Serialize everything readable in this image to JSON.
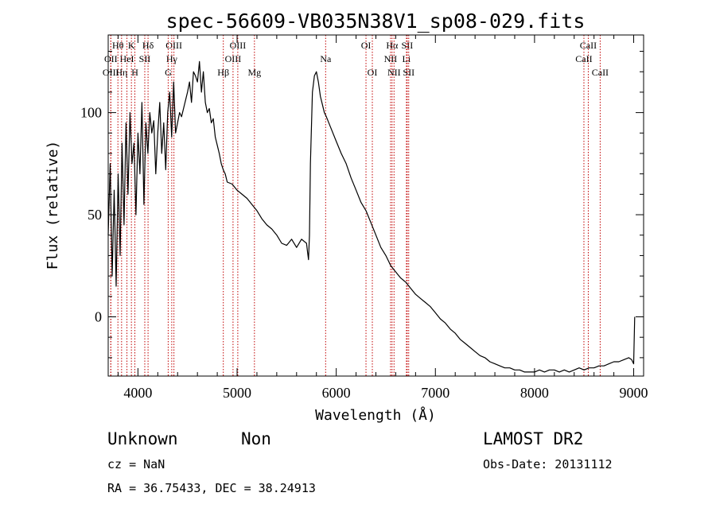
{
  "chart_data": {
    "type": "line",
    "title": "spec-56609-VB035N38V1_sp08-029.fits",
    "xlabel": "Wavelength (Å)",
    "ylabel": "Flux (relative)",
    "xlim": [
      3700,
      9100
    ],
    "ylim": [
      -29,
      138
    ],
    "xticks": [
      "4000",
      "5000",
      "6000",
      "7000",
      "8000",
      "9000"
    ],
    "yticks": [
      "0",
      "50",
      "100"
    ],
    "grid": false,
    "series": [
      {
        "color": "#000000",
        "x": [
          3700,
          3720,
          3740,
          3760,
          3780,
          3800,
          3820,
          3840,
          3860,
          3880,
          3900,
          3920,
          3940,
          3960,
          3980,
          4000,
          4020,
          4040,
          4060,
          4080,
          4100,
          4120,
          4140,
          4160,
          4180,
          4200,
          4220,
          4240,
          4260,
          4280,
          4300,
          4320,
          4340,
          4360,
          4380,
          4400,
          4420,
          4440,
          4460,
          4480,
          4500,
          4520,
          4540,
          4560,
          4580,
          4600,
          4620,
          4640,
          4660,
          4680,
          4700,
          4720,
          4740,
          4760,
          4780,
          4800,
          4820,
          4840,
          4860,
          4880,
          4900,
          4950,
          5000,
          5050,
          5100,
          5150,
          5200,
          5250,
          5300,
          5350,
          5400,
          5450,
          5500,
          5550,
          5600,
          5650,
          5700,
          5710,
          5720,
          5730,
          5740,
          5760,
          5780,
          5800,
          5820,
          5840,
          5860,
          5880,
          5900,
          5950,
          6000,
          6050,
          6100,
          6150,
          6200,
          6250,
          6300,
          6350,
          6400,
          6450,
          6500,
          6550,
          6600,
          6650,
          6700,
          6750,
          6800,
          6850,
          6900,
          6950,
          7000,
          7050,
          7100,
          7150,
          7200,
          7250,
          7300,
          7350,
          7400,
          7450,
          7500,
          7550,
          7600,
          7650,
          7700,
          7750,
          7800,
          7850,
          7900,
          7950,
          8000,
          8050,
          8100,
          8150,
          8200,
          8250,
          8300,
          8350,
          8400,
          8450,
          8500,
          8550,
          8600,
          8650,
          8700,
          8750,
          8800,
          8850,
          8900,
          8950,
          8980,
          9000,
          9010
        ],
        "y": [
          40,
          75,
          20,
          62,
          15,
          70,
          30,
          85,
          45,
          95,
          60,
          100,
          75,
          85,
          50,
          90,
          70,
          105,
          55,
          95,
          80,
          100,
          90,
          96,
          70,
          90,
          105,
          80,
          95,
          72,
          100,
          110,
          88,
          115,
          90,
          95,
          100,
          98,
          102,
          106,
          110,
          115,
          105,
          120,
          118,
          115,
          125,
          110,
          120,
          105,
          100,
          102,
          95,
          97,
          88,
          84,
          80,
          75,
          72,
          70,
          66,
          65,
          62,
          60,
          58,
          55,
          52,
          48,
          45,
          43,
          40,
          36,
          35,
          38,
          34,
          38,
          36,
          32,
          28,
          40,
          75,
          110,
          118,
          120,
          115,
          108,
          104,
          100,
          98,
          92,
          86,
          80,
          75,
          68,
          62,
          56,
          52,
          46,
          40,
          34,
          30,
          25,
          22,
          19,
          17,
          14,
          11,
          9,
          7,
          5,
          2,
          -1,
          -3,
          -6,
          -8,
          -11,
          -13,
          -15,
          -17,
          -19,
          -20,
          -22,
          -23,
          -24,
          -25,
          -25,
          -26,
          -26,
          -27,
          -27,
          -27,
          -26,
          -27,
          -26,
          -26,
          -27,
          -26,
          -27,
          -26,
          -25,
          -26,
          -25,
          -25,
          -24,
          -24,
          -23,
          -22,
          -22,
          -21,
          -20,
          -21,
          -23,
          0
        ]
      }
    ],
    "lines": [
      {
        "label": "Hθ",
        "wl": 3798,
        "row": 0
      },
      {
        "label": "OII",
        "wl": 3727,
        "row": 1
      },
      {
        "label": "OIII",
        "wl": 3726,
        "row": 2
      },
      {
        "label": "K",
        "wl": 3934,
        "row": 0
      },
      {
        "label": "HeI",
        "wl": 3889,
        "row": 1
      },
      {
        "label": "Hη",
        "wl": 3835,
        "row": 2
      },
      {
        "label": "SII",
        "wl": 4069,
        "row": 1
      },
      {
        "label": "H",
        "wl": 3969,
        "row": 2
      },
      {
        "label": "Hδ",
        "wl": 4102,
        "row": 0
      },
      {
        "label": "OIII",
        "wl": 4363,
        "row": 0
      },
      {
        "label": "Hγ",
        "wl": 4341,
        "row": 1
      },
      {
        "label": "G",
        "wl": 4305,
        "row": 2
      },
      {
        "label": "OIII",
        "wl": 5007,
        "row": 0
      },
      {
        "label": "OIII",
        "wl": 4959,
        "row": 1
      },
      {
        "label": "Hβ",
        "wl": 4861,
        "row": 2
      },
      {
        "label": "Mg",
        "wl": 5175,
        "row": 2
      },
      {
        "label": "Na",
        "wl": 5893,
        "row": 1
      },
      {
        "label": "OI",
        "wl": 6300,
        "row": 0
      },
      {
        "label": "OI",
        "wl": 6364,
        "row": 2
      },
      {
        "label": "Hα",
        "wl": 6563,
        "row": 0
      },
      {
        "label": "SII",
        "wl": 6716,
        "row": 0
      },
      {
        "label": "NII",
        "wl": 6548,
        "row": 1
      },
      {
        "label": "Li",
        "wl": 6708,
        "row": 1
      },
      {
        "label": "NII",
        "wl": 6583,
        "row": 2
      },
      {
        "label": "SII",
        "wl": 6731,
        "row": 2
      },
      {
        "label": "CaII",
        "wl": 8542,
        "row": 0
      },
      {
        "label": "CaII",
        "wl": 8498,
        "row": 1
      },
      {
        "label": "CaII",
        "wl": 8662,
        "row": 2
      }
    ]
  },
  "info": {
    "class": "Unknown",
    "subclass": "Non",
    "cz": "cz = NaN",
    "radec": "RA =  36.75433, DEC =  38.24913",
    "survey": "LAMOST DR2",
    "obsdate": "Obs-Date: 20131112"
  }
}
